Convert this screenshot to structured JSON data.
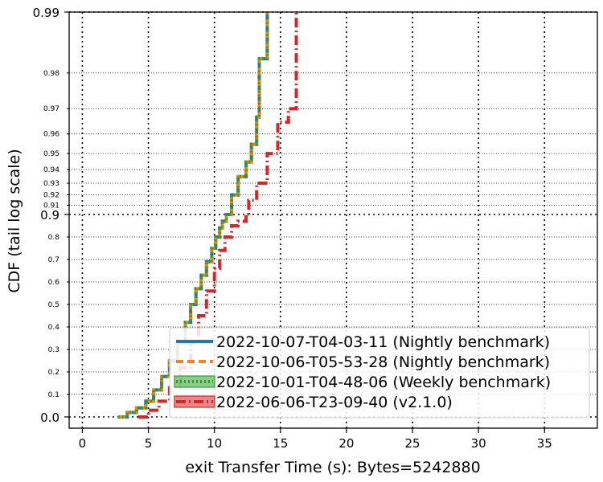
{
  "chart_data": {
    "type": "line",
    "xlabel": "exit Transfer Time (s): Bytes=5242880",
    "ylabel": "CDF (tail log scale)",
    "xlim": [
      -1,
      39
    ],
    "x_ticks": [
      0,
      5,
      10,
      15,
      20,
      25,
      30,
      35
    ],
    "y_scale": "tail-log",
    "y_major_ticks": [
      {
        "value": 0.0,
        "label": "0.0"
      },
      {
        "value": 0.9,
        "label": "0.9"
      },
      {
        "value": 0.99,
        "label": "0.99"
      }
    ],
    "y_minor_ticks": [
      {
        "value": 0.1,
        "label": "0.1"
      },
      {
        "value": 0.2,
        "label": "0.2"
      },
      {
        "value": 0.3,
        "label": "0.3"
      },
      {
        "value": 0.4,
        "label": "0.4"
      },
      {
        "value": 0.5,
        "label": "0.5"
      },
      {
        "value": 0.6,
        "label": "0.6"
      },
      {
        "value": 0.7,
        "label": "0.7"
      },
      {
        "value": 0.8,
        "label": "0.8"
      },
      {
        "value": 0.91,
        "label": "0.91"
      },
      {
        "value": 0.92,
        "label": "0.92"
      },
      {
        "value": 0.93,
        "label": "0.93"
      },
      {
        "value": 0.94,
        "label": "0.94"
      },
      {
        "value": 0.95,
        "label": "0.95"
      },
      {
        "value": 0.96,
        "label": "0.96"
      },
      {
        "value": 0.97,
        "label": "0.97"
      },
      {
        "value": 0.98,
        "label": "0.98"
      }
    ],
    "grid": true,
    "legend_position": "bottom-right",
    "series": [
      {
        "name": "2022-10-07-T04-03-11 (Nightly benchmark)",
        "color": "#1f77b4",
        "style": "solid",
        "points": [
          [
            2.7,
            0.0
          ],
          [
            3.4,
            0.02
          ],
          [
            4.1,
            0.04
          ],
          [
            4.8,
            0.07
          ],
          [
            5.4,
            0.12
          ],
          [
            6.0,
            0.18
          ],
          [
            6.6,
            0.25
          ],
          [
            7.2,
            0.33
          ],
          [
            7.8,
            0.42
          ],
          [
            8.2,
            0.5
          ],
          [
            8.6,
            0.57
          ],
          [
            9.0,
            0.63
          ],
          [
            9.4,
            0.69
          ],
          [
            9.8,
            0.75
          ],
          [
            10.1,
            0.8
          ],
          [
            10.4,
            0.84
          ],
          [
            10.6,
            0.87
          ],
          [
            10.9,
            0.9
          ],
          [
            11.3,
            0.92
          ],
          [
            11.8,
            0.935
          ],
          [
            12.4,
            0.945
          ],
          [
            12.8,
            0.955
          ],
          [
            13.2,
            0.967
          ],
          [
            13.4,
            0.983
          ],
          [
            14.0,
            0.99
          ]
        ]
      },
      {
        "name": "2022-10-06-T05-53-28 (Nightly benchmark)",
        "color": "#ff7f0e",
        "style": "dashed",
        "points": [
          [
            2.7,
            0.0
          ],
          [
            3.4,
            0.02
          ],
          [
            4.1,
            0.04
          ],
          [
            4.8,
            0.07
          ],
          [
            5.4,
            0.12
          ],
          [
            6.0,
            0.18
          ],
          [
            6.6,
            0.25
          ],
          [
            7.2,
            0.33
          ],
          [
            7.8,
            0.42
          ],
          [
            8.2,
            0.5
          ],
          [
            8.6,
            0.57
          ],
          [
            9.0,
            0.63
          ],
          [
            9.4,
            0.69
          ],
          [
            9.8,
            0.75
          ],
          [
            10.1,
            0.8
          ],
          [
            10.4,
            0.84
          ],
          [
            10.6,
            0.87
          ],
          [
            10.9,
            0.9
          ],
          [
            11.3,
            0.92
          ],
          [
            11.8,
            0.935
          ],
          [
            12.4,
            0.945
          ],
          [
            12.8,
            0.955
          ],
          [
            13.2,
            0.967
          ],
          [
            13.4,
            0.983
          ],
          [
            14.0,
            0.99
          ]
        ]
      },
      {
        "name": "2022-10-01-T04-48-06 (Weekly benchmark)",
        "color": "#2ca02c",
        "style": "dotted",
        "points": [
          [
            2.7,
            0.0
          ],
          [
            3.4,
            0.02
          ],
          [
            4.1,
            0.04
          ],
          [
            4.8,
            0.07
          ],
          [
            5.4,
            0.12
          ],
          [
            6.0,
            0.18
          ],
          [
            6.6,
            0.25
          ],
          [
            7.2,
            0.33
          ],
          [
            7.8,
            0.42
          ],
          [
            8.2,
            0.5
          ],
          [
            8.6,
            0.57
          ],
          [
            9.0,
            0.63
          ],
          [
            9.4,
            0.69
          ],
          [
            9.8,
            0.75
          ],
          [
            10.1,
            0.8
          ],
          [
            10.4,
            0.84
          ],
          [
            10.6,
            0.87
          ],
          [
            10.9,
            0.9
          ],
          [
            11.3,
            0.92
          ],
          [
            11.8,
            0.935
          ],
          [
            12.4,
            0.945
          ],
          [
            12.8,
            0.955
          ],
          [
            13.2,
            0.967
          ],
          [
            13.4,
            0.983
          ],
          [
            14.0,
            0.99
          ]
        ]
      },
      {
        "name": "2022-06-06-T23-09-40 (v2.1.0)",
        "color": "#d62728",
        "style": "dashdot",
        "points": [
          [
            4.2,
            0.0
          ],
          [
            5.0,
            0.03
          ],
          [
            5.8,
            0.07
          ],
          [
            6.6,
            0.13
          ],
          [
            7.4,
            0.22
          ],
          [
            8.2,
            0.33
          ],
          [
            8.8,
            0.45
          ],
          [
            9.4,
            0.56
          ],
          [
            10.0,
            0.66
          ],
          [
            10.4,
            0.74
          ],
          [
            10.8,
            0.8
          ],
          [
            11.3,
            0.85
          ],
          [
            11.8,
            0.87
          ],
          [
            12.4,
            0.9
          ],
          [
            12.6,
            0.915
          ],
          [
            13.2,
            0.93
          ],
          [
            14.0,
            0.95
          ],
          [
            14.8,
            0.965
          ],
          [
            15.6,
            0.97
          ],
          [
            16.2,
            0.99
          ]
        ]
      }
    ]
  }
}
